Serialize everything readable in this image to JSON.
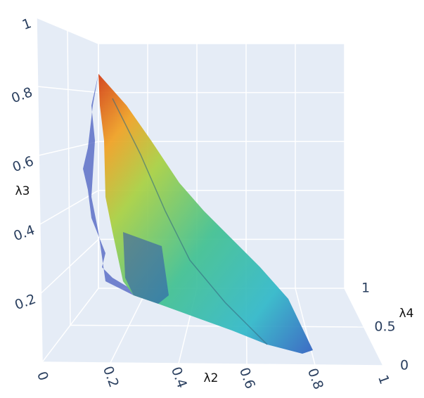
{
  "chart_data": {
    "type": "volume",
    "xaxis_title": "λ2",
    "yaxis_title": "λ3",
    "zaxis_title": "λ4",
    "xlim": [
      0,
      1
    ],
    "xticks": [
      0,
      0.2,
      0.4,
      0.6,
      0.8,
      1
    ],
    "ylim": [
      0,
      1
    ],
    "yticks": [
      0.2,
      0.4,
      0.6,
      0.8,
      1
    ],
    "zlim": [
      0,
      1
    ],
    "zticks": [
      0,
      0.5,
      1
    ],
    "grid": true
  }
}
